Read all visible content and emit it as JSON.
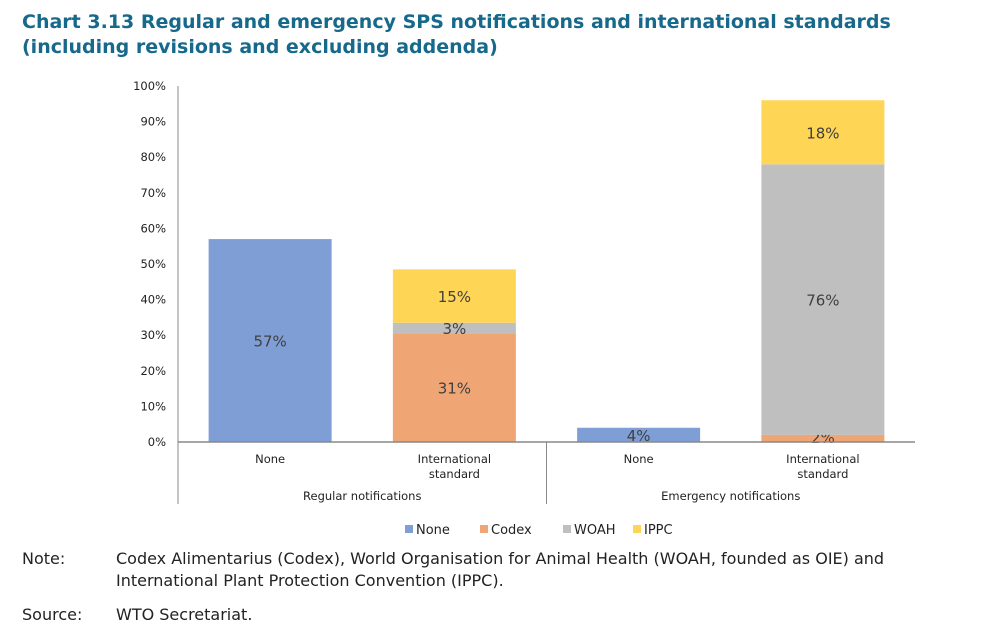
{
  "chart_data": {
    "type": "bar",
    "stacked": true,
    "title_line1": "Chart 3.13 Regular and emergency SPS notifications and international standards",
    "title_line2": "(including revisions and excluding addenda)",
    "ylim": [
      0,
      100
    ],
    "yticks": [
      "0%",
      "10%",
      "20%",
      "30%",
      "40%",
      "50%",
      "60%",
      "70%",
      "80%",
      "90%",
      "100%"
    ],
    "groups": [
      {
        "label": "Regular notifications",
        "categories": [
          "None",
          "International standard"
        ]
      },
      {
        "label": "Emergency notifications",
        "categories": [
          "None",
          "International standard"
        ]
      }
    ],
    "categories": [
      "None",
      "International standard",
      "None",
      "International standard"
    ],
    "series": [
      {
        "name": "None",
        "color": "#7f9ed6",
        "values": [
          57,
          0,
          4,
          0
        ],
        "labels": [
          "57%",
          "",
          "4%",
          ""
        ]
      },
      {
        "name": "Codex",
        "color": "#f0a574",
        "values": [
          0,
          30.5,
          0,
          2
        ],
        "labels": [
          "",
          "31%",
          "",
          "2%"
        ]
      },
      {
        "name": "WOAH",
        "color": "#bfbfbf",
        "values": [
          0,
          3,
          0,
          76
        ],
        "labels": [
          "",
          "3%",
          "",
          "76%"
        ]
      },
      {
        "name": "IPPC",
        "color": "#ffd555",
        "values": [
          0,
          15,
          0,
          18
        ],
        "labels": [
          "",
          "15%",
          "",
          "18%"
        ]
      }
    ],
    "legend_position": "bottom"
  },
  "notes": {
    "note_label": "Note:",
    "note_text": "Codex Alimentarius (Codex), World Organisation for Animal Health (WOAH, founded as OIE) and International Plant Protection Convention (IPPC).",
    "source_label": "Source:",
    "source_text": "WTO Secretariat."
  }
}
